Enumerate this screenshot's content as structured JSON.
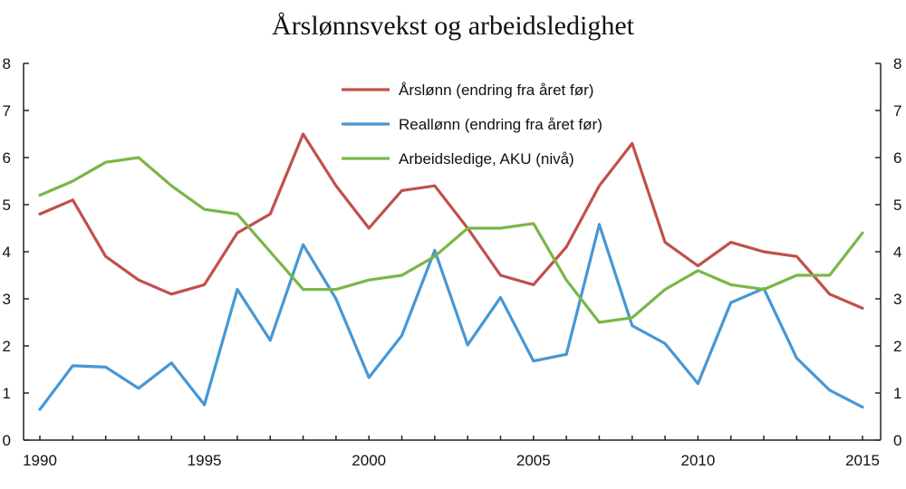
{
  "chart_data": {
    "type": "line",
    "title": "Årslønnsvekst og arbeidsledighet",
    "xlabel": "",
    "ylabel": "",
    "x": [
      1990,
      1991,
      1992,
      1993,
      1994,
      1995,
      1996,
      1997,
      1998,
      1999,
      2000,
      2001,
      2002,
      2003,
      2004,
      2005,
      2006,
      2007,
      2008,
      2009,
      2010,
      2011,
      2012,
      2013,
      2014,
      2015
    ],
    "xticks": [
      1990,
      1995,
      2000,
      2005,
      2010,
      2015
    ],
    "ylim": [
      0,
      8
    ],
    "yticks": [
      0,
      1,
      2,
      3,
      4,
      5,
      6,
      7,
      8
    ],
    "secondary_y_axis": true,
    "grid": false,
    "legend_position": "top-center",
    "series": [
      {
        "name": "Årslønn (endring fra året før)",
        "color": "#c0504d",
        "values": [
          4.8,
          5.1,
          3.9,
          3.4,
          3.1,
          3.3,
          4.4,
          4.8,
          6.5,
          5.4,
          4.5,
          5.3,
          5.4,
          4.5,
          3.5,
          3.3,
          4.1,
          5.4,
          6.3,
          4.2,
          3.7,
          4.2,
          4.0,
          3.9,
          3.1,
          2.8
        ]
      },
      {
        "name": "Reallønn (endring fra året før)",
        "color": "#4697d5",
        "values": [
          0.65,
          1.58,
          1.55,
          1.1,
          1.64,
          0.75,
          3.2,
          2.12,
          4.15,
          3.0,
          1.33,
          2.22,
          4.03,
          2.02,
          3.03,
          1.68,
          1.82,
          4.58,
          2.43,
          2.05,
          1.2,
          2.92,
          3.22,
          1.74,
          1.06,
          0.7
        ]
      },
      {
        "name": "Arbeidsledige, AKU (nivå)",
        "color": "#7ab648",
        "values": [
          5.2,
          5.5,
          5.9,
          6.0,
          5.4,
          4.9,
          4.8,
          4.0,
          3.2,
          3.2,
          3.4,
          3.5,
          3.9,
          4.5,
          4.5,
          4.6,
          3.4,
          2.5,
          2.6,
          3.2,
          3.6,
          3.3,
          3.2,
          3.5,
          3.5,
          4.4
        ]
      }
    ]
  }
}
